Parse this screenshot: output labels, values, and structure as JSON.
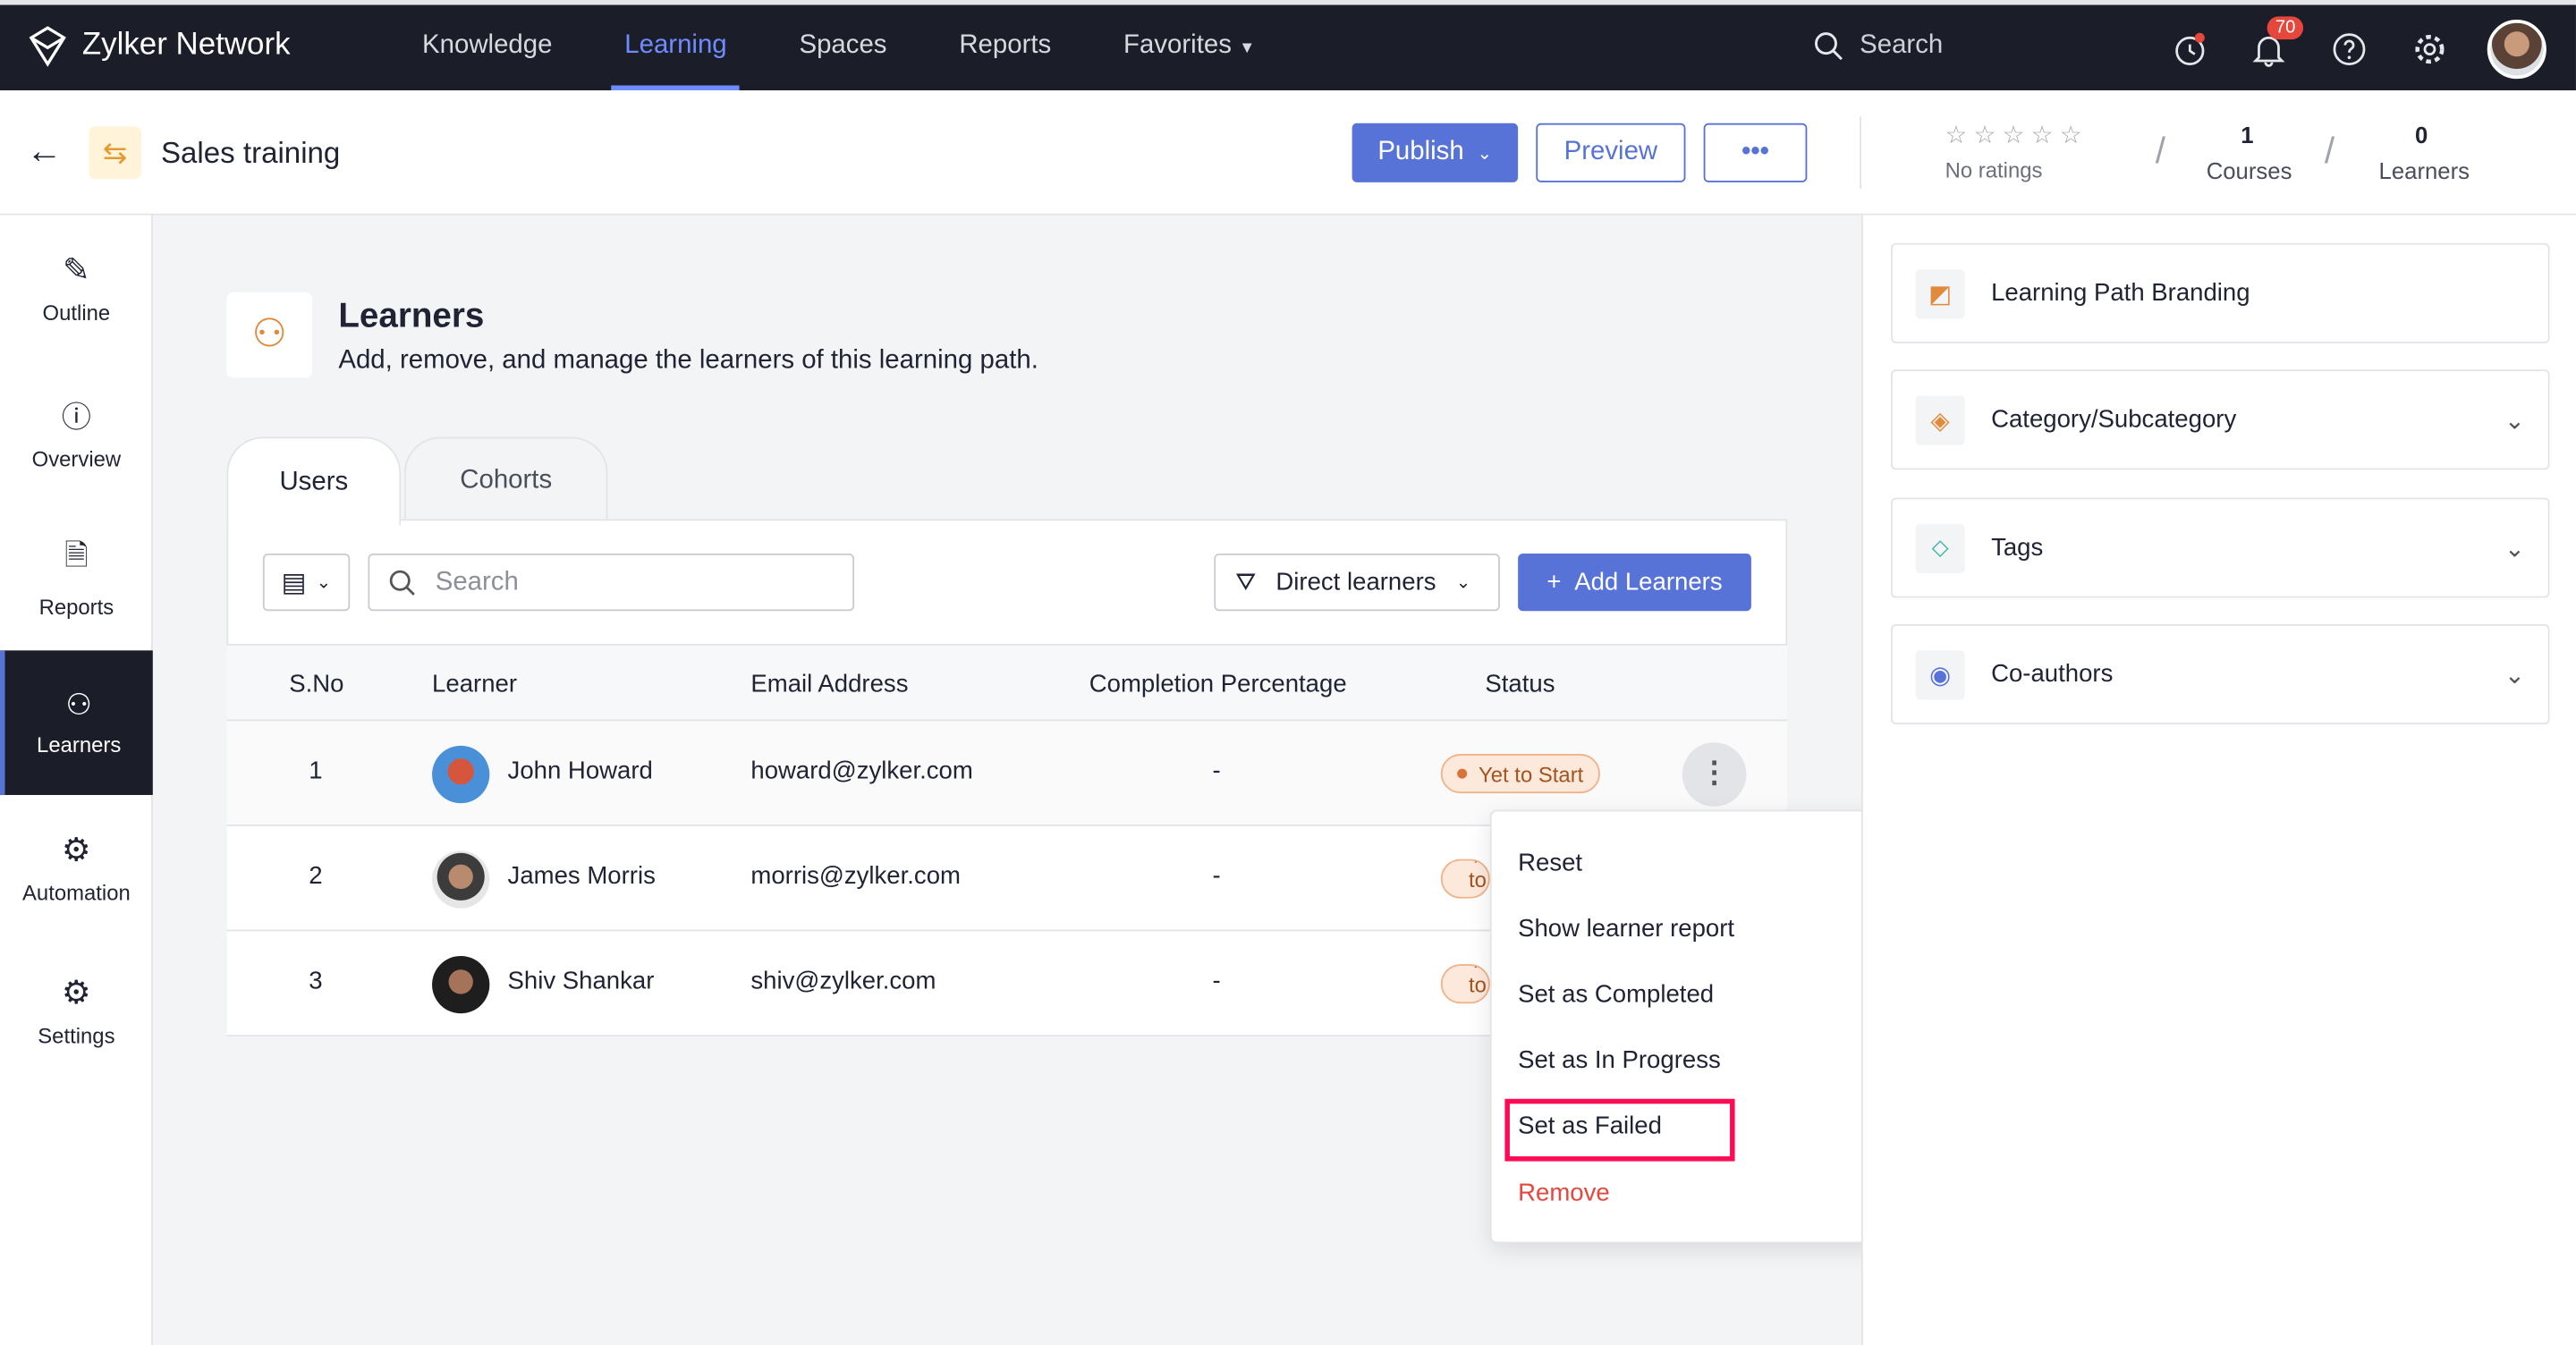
{
  "app": {
    "name": "Zylker Network",
    "nav": [
      "Knowledge",
      "Learning",
      "Spaces",
      "Reports",
      "Favorites"
    ],
    "active_nav": "Learning",
    "search_label": "Search",
    "notification_count": "70"
  },
  "header": {
    "title": "Sales training",
    "publish": "Publish",
    "preview": "Preview",
    "more": "•••",
    "ratings": "No ratings",
    "courses_count": "1",
    "courses_label": "Courses",
    "learners_count": "0",
    "learners_label": "Learners",
    "rating_stars": 0
  },
  "sidebar": [
    "Outline",
    "Overview",
    "Reports",
    "Learners",
    "Automation",
    "Settings"
  ],
  "section": {
    "title": "Learners",
    "subtitle": "Add, remove, and manage the learners of this learning path."
  },
  "tabs": [
    "Users",
    "Cohorts"
  ],
  "toolbar": {
    "search_placeholder": "Search",
    "filter": "Direct learners",
    "add": "Add Learners"
  },
  "table": {
    "headers": [
      "S.No",
      "Learner",
      "Email Address",
      "Completion Percentage",
      "Status"
    ],
    "rows": [
      {
        "sno": "1",
        "name": "John Howard",
        "email": "howard@zylker.com",
        "completion": "-",
        "status": "Yet to Start"
      },
      {
        "sno": "2",
        "name": "James Morris",
        "email": "morris@zylker.com",
        "completion": "-",
        "status": "Yet to Start"
      },
      {
        "sno": "3",
        "name": "Shiv Shankar",
        "email": "shiv@zylker.com",
        "completion": "-",
        "status": "Yet to Start"
      }
    ]
  },
  "menu": [
    "Reset",
    "Show learner report",
    "Set as Completed",
    "Set as In Progress",
    "Set as Failed",
    "Remove"
  ],
  "right_panel": [
    "Learning Path Branding",
    "Category/Subcategory",
    "Tags",
    "Co-authors"
  ],
  "colors": {
    "accent": "#5873d8",
    "topbar": "#1b1d29",
    "remove": "#e5473d",
    "highlight": "#ff0a54"
  }
}
